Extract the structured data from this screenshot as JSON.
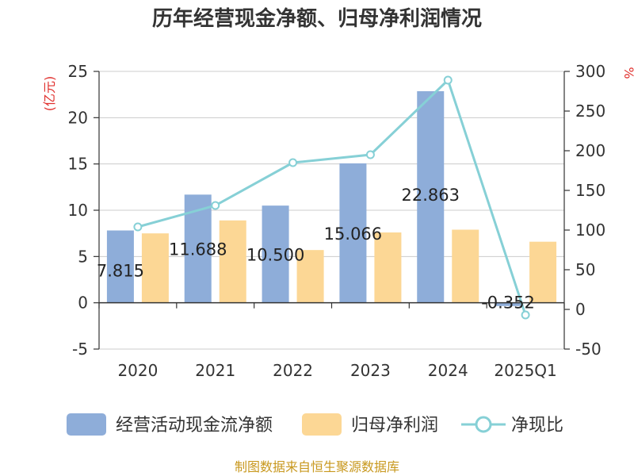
{
  "title": "历年经营现金净额、归母净利润情况",
  "left_unit": "(亿元)",
  "right_unit": "%",
  "source": "制图数据来自恒生聚源数据库",
  "colors": {
    "cash_flow": "#8eadd9",
    "net_profit": "#fcd795",
    "ratio": "#86d0d6",
    "unit": "#e0302d",
    "source": "#c8981e",
    "grid": "#cccccc",
    "axis": "#333333"
  },
  "chart_data": {
    "type": "bar",
    "title": "历年经营现金净额、归母净利润情况",
    "categories": [
      "2020",
      "2021",
      "2022",
      "2023",
      "2024",
      "2025Q1"
    ],
    "series": [
      {
        "name": "经营活动现金流净额",
        "type": "bar",
        "axis": "left",
        "values": [
          7.815,
          11.688,
          10.5,
          15.066,
          22.863,
          -0.352
        ],
        "labels": [
          "7.815",
          "11.688",
          "10.500",
          "15.066",
          "22.863",
          "-0.352"
        ]
      },
      {
        "name": "归母净利润",
        "type": "bar",
        "axis": "left",
        "values": [
          7.5,
          8.9,
          5.7,
          7.6,
          7.9,
          6.6
        ]
      },
      {
        "name": "净现比",
        "type": "line",
        "axis": "right",
        "values": [
          104,
          131,
          185,
          195,
          289,
          -7
        ]
      }
    ],
    "left_axis": {
      "label": "(亿元)",
      "min": -5,
      "max": 25,
      "ticks": [
        25,
        20,
        15,
        10,
        5,
        0,
        -5
      ]
    },
    "right_axis": {
      "label": "%",
      "min": -50,
      "max": 300,
      "ticks": [
        300,
        250,
        200,
        150,
        100,
        50,
        0,
        -50
      ]
    },
    "grid": true,
    "legend": "bottom"
  }
}
